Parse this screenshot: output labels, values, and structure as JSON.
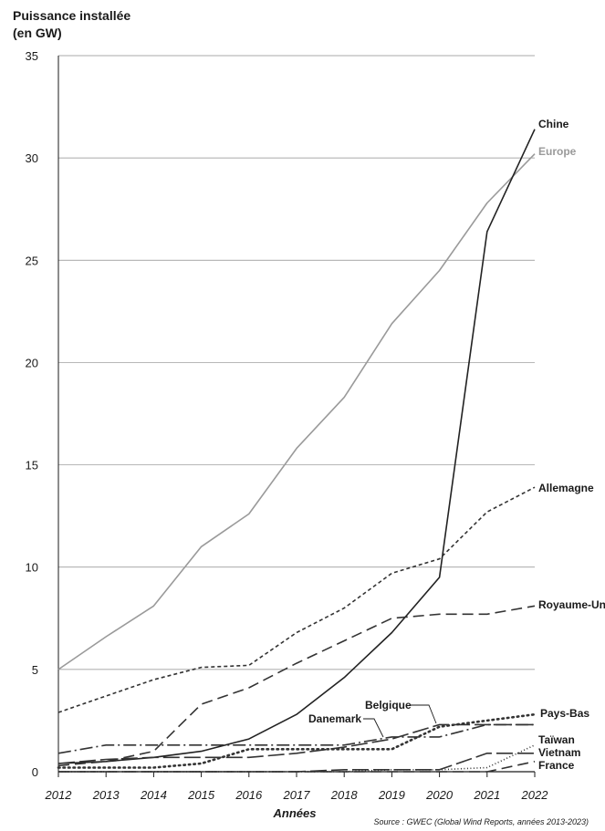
{
  "chart_data": {
    "type": "line",
    "title": "",
    "ylabel": "Puissance installée\n(en GW)",
    "xlabel": "Années",
    "source": "Source : GWEC (Global Wind Reports, années 2013-2023)",
    "ylim": [
      0,
      35
    ],
    "yticks": [
      0,
      5,
      10,
      15,
      20,
      25,
      30,
      35
    ],
    "x": [
      2012,
      2013,
      2014,
      2015,
      2016,
      2017,
      2018,
      2019,
      2020,
      2021,
      2022
    ],
    "grid": true,
    "series": [
      {
        "name": "Europe",
        "color": "#9a9a9a",
        "dash": "solid",
        "values": [
          5.0,
          6.6,
          8.1,
          11.0,
          12.6,
          15.8,
          18.3,
          21.9,
          24.5,
          27.8,
          30.2
        ]
      },
      {
        "name": "Chine",
        "color": "#222222",
        "dash": "solid",
        "values": [
          0.4,
          0.5,
          0.7,
          1.0,
          1.6,
          2.8,
          4.6,
          6.8,
          9.5,
          26.4,
          31.4
        ]
      },
      {
        "name": "Allemagne",
        "color": "#333333",
        "dash": "dashed",
        "values": [
          0.3,
          0.5,
          1.0,
          3.3,
          4.1,
          5.3,
          6.4,
          7.5,
          7.7,
          7.7,
          8.1
        ]
      },
      {
        "name": "Royaume-Uni",
        "color": "#333333",
        "dash": "short-dashed",
        "values": [
          2.9,
          3.7,
          4.5,
          5.1,
          5.2,
          6.8,
          8.0,
          9.7,
          10.4,
          12.7,
          13.9
        ]
      },
      {
        "name": "Belgique",
        "color": "#333333",
        "dash": "long-dash",
        "values": [
          0.4,
          0.6,
          0.7,
          0.7,
          0.7,
          0.9,
          1.2,
          1.6,
          2.3,
          2.3,
          2.3
        ]
      },
      {
        "name": "Danemark",
        "color": "#333333",
        "dash": "dash-dot",
        "values": [
          0.9,
          1.3,
          1.3,
          1.3,
          1.3,
          1.3,
          1.3,
          1.7,
          1.7,
          2.3,
          2.3
        ]
      },
      {
        "name": "Pays-Bas",
        "color": "#333333",
        "dash": "dotted",
        "values": [
          0.2,
          0.2,
          0.2,
          0.4,
          1.1,
          1.1,
          1.1,
          1.1,
          2.2,
          2.5,
          2.8
        ]
      },
      {
        "name": "Taïwan",
        "color": "#333333",
        "dash": "fine-dotted",
        "values": [
          0.0,
          0.0,
          0.0,
          0.0,
          0.0,
          0.0,
          0.0,
          0.1,
          0.1,
          0.2,
          1.3
        ]
      },
      {
        "name": "Vietnam",
        "color": "#333333",
        "dash": "long-dash",
        "values": [
          0.0,
          0.0,
          0.0,
          0.0,
          0.0,
          0.0,
          0.1,
          0.1,
          0.1,
          0.9,
          0.9
        ]
      },
      {
        "name": "France",
        "color": "#333333",
        "dash": "dashed",
        "values": [
          0.0,
          0.0,
          0.0,
          0.0,
          0.0,
          0.0,
          0.0,
          0.0,
          0.0,
          0.0,
          0.5
        ]
      }
    ]
  }
}
